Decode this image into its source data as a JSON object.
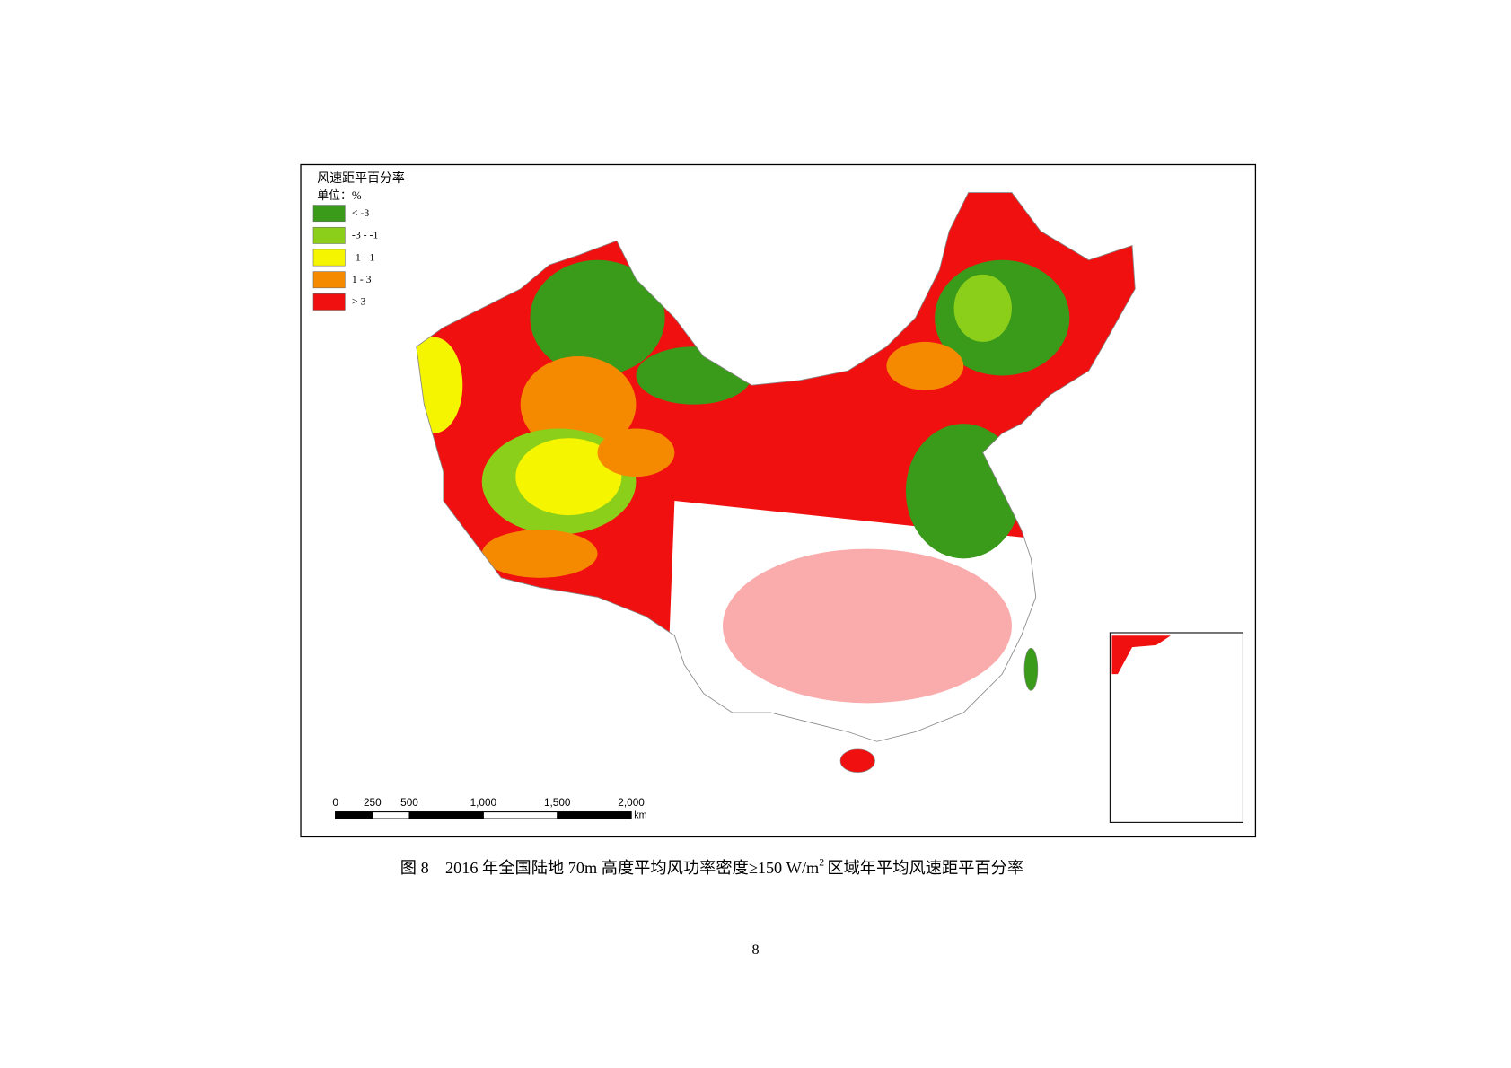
{
  "legend": {
    "title": "风速距平百分率",
    "unit": "单位：%",
    "items": [
      {
        "label": "< -3",
        "color": "#3a9a1a"
      },
      {
        "label": "-3 - -1",
        "color": "#8ccf1a"
      },
      {
        "label": "-1 - 1",
        "color": "#f5f500"
      },
      {
        "label": "1 - 3",
        "color": "#f58a00"
      },
      {
        "label": "> 3",
        "color": "#f01010"
      }
    ]
  },
  "scale_bar": {
    "ticks": [
      0,
      250,
      500,
      {
        "value": 1000,
        "label": "1,000"
      },
      {
        "value": 1500,
        "label": "1,500"
      },
      {
        "value": 2000,
        "label": "2,000"
      }
    ],
    "unit": "km"
  },
  "caption": {
    "figure": "图 8",
    "text": "2016 年全国陆地 70m 高度平均风功率密度≥150 W/m",
    "superscript": "2",
    "text_end": "区域年平均风速距平百分率"
  },
  "page_number": "8"
}
